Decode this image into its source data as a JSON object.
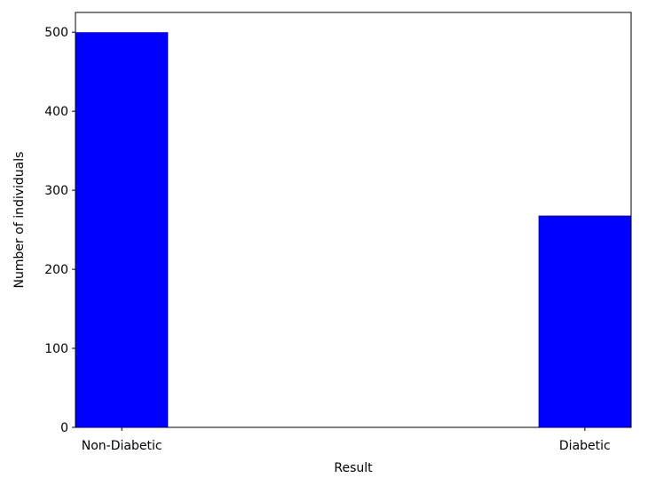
{
  "chart_data": {
    "type": "bar",
    "title": "",
    "xlabel": "Result",
    "ylabel": "Number of individuals",
    "categories": [
      "Non-Diabetic",
      "Diabetic"
    ],
    "values": [
      500,
      268
    ],
    "ylim": [
      0,
      525
    ],
    "yticks": [
      "0",
      "100",
      "200",
      "300",
      "400",
      "500"
    ],
    "bar_color": "#0000ff",
    "grid": false,
    "legend": "none"
  }
}
